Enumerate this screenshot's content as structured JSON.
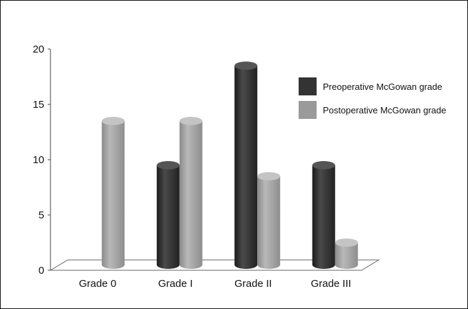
{
  "chart_data": {
    "type": "bar",
    "categories": [
      "Grade 0",
      "Grade I",
      "Grade II",
      "Grade III"
    ],
    "series": [
      {
        "name": "Preoperative McGowan grade",
        "values": [
          0,
          9,
          18,
          9
        ],
        "color": "#333333"
      },
      {
        "name": "Postoperative McGowan grade",
        "values": [
          13,
          13,
          8,
          2
        ],
        "color": "#9a9a9a"
      }
    ],
    "title": "",
    "xlabel": "",
    "ylabel": "",
    "ylim": [
      0,
      20
    ],
    "yticks": [
      0,
      5,
      10,
      15,
      20
    ],
    "grid": false,
    "legend": "right",
    "style": "3d-cylinder"
  }
}
